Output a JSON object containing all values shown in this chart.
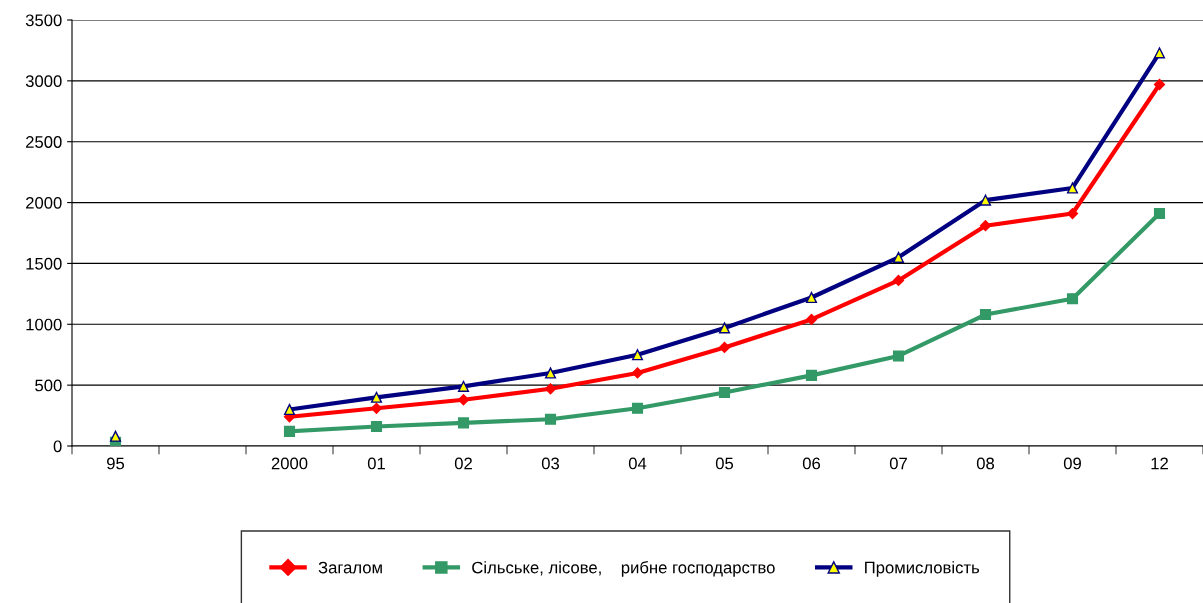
{
  "chart_data": {
    "type": "line",
    "categories": [
      "95",
      null,
      "2000",
      "01",
      "02",
      "03",
      "04",
      "05",
      "06",
      "07",
      "08",
      "09",
      "12"
    ],
    "series": [
      {
        "name": "Загалом",
        "color": "#ff0000",
        "marker": "diamond",
        "values": [
          null,
          null,
          240,
          310,
          380,
          470,
          600,
          810,
          1040,
          1360,
          1810,
          1910,
          2970
        ]
      },
      {
        "name": "Сільське, лісове,    рибне господарство",
        "color": "#339966",
        "marker": "square",
        "values": [
          30,
          null,
          120,
          160,
          190,
          220,
          310,
          440,
          580,
          740,
          1080,
          1210,
          1910
        ]
      },
      {
        "name": "Промисловість",
        "color": "#000080",
        "marker": "triangle",
        "values": [
          80,
          null,
          300,
          400,
          490,
          600,
          750,
          970,
          1220,
          1550,
          2020,
          2120,
          3230
        ]
      }
    ],
    "ylim": [
      0,
      3500
    ],
    "yticks": [
      0,
      500,
      1000,
      1500,
      2000,
      2500,
      3000,
      3500
    ],
    "grid": "y",
    "legend": "bottom",
    "line_style": "solid"
  }
}
